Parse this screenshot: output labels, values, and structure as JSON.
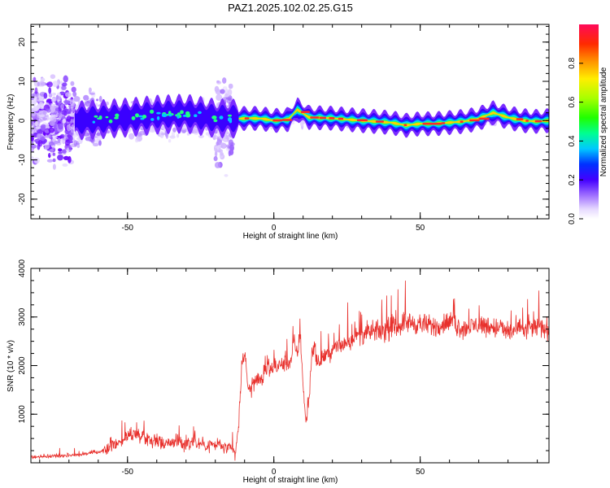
{
  "figure": {
    "title": "PAZ1.2025.102.02.25.G15"
  },
  "chart_data": [
    {
      "type": "heatmap",
      "xlabel": "Height of straight line (km)",
      "ylabel": "Frequency (Hz)",
      "xlim": [
        -83,
        94
      ],
      "ylim": [
        -25,
        24.5
      ],
      "xticks": [
        -50,
        0,
        50
      ],
      "yticks": [
        -20,
        -10,
        0,
        10,
        20
      ],
      "grid": false,
      "ridge": {
        "x": [
          -68,
          -60,
          -50,
          -40,
          -30,
          -20,
          -12,
          -8,
          -4,
          0,
          5,
          8,
          12,
          20,
          30,
          40,
          45,
          50,
          55,
          60,
          65,
          70,
          75,
          80,
          85,
          90,
          94
        ],
        "y": [
          0,
          0.3,
          0.8,
          1.5,
          1.8,
          0.6,
          0.5,
          0.6,
          0.5,
          0,
          0.3,
          2.8,
          0.8,
          0.6,
          0,
          -0.5,
          -1.2,
          -0.8,
          -0.8,
          -0.5,
          -0.2,
          0.5,
          2.0,
          0.8,
          0,
          -0.2,
          0
        ]
      },
      "colorbar": {
        "label": "Normalized spectral amplitude",
        "range": [
          0,
          1
        ],
        "ticks": [
          0.0,
          0.2,
          0.4,
          0.6,
          0.8
        ]
      }
    },
    {
      "type": "line",
      "xlabel": "Height of straight line (km)",
      "ylabel": "SNR (10 * v/v)",
      "xlim": [
        -83,
        94
      ],
      "ylim": [
        0,
        4000
      ],
      "xticks": [
        -50,
        0,
        50
      ],
      "yticks": [
        1000,
        2000,
        3000,
        4000
      ],
      "grid": false,
      "series": [
        {
          "color": "#e8302c",
          "x": [
            -83,
            -78,
            -73,
            -68,
            -63,
            -58,
            -55,
            -52,
            -49,
            -46,
            -43,
            -40,
            -37,
            -34,
            -31,
            -28,
            -25,
            -22,
            -19,
            -16,
            -13,
            -12,
            -11,
            -10,
            -9,
            -8,
            -7,
            -6,
            -4,
            -2,
            0,
            2,
            4,
            6,
            7,
            8,
            9,
            10,
            11,
            12,
            13,
            14,
            15,
            17,
            20,
            25,
            30,
            35,
            40,
            45,
            50,
            55,
            60,
            65,
            70,
            75,
            80,
            85,
            90,
            94
          ],
          "y": [
            120,
            130,
            150,
            160,
            200,
            250,
            380,
            450,
            600,
            580,
            500,
            450,
            400,
            430,
            380,
            420,
            400,
            350,
            380,
            300,
            220,
            800,
            2000,
            2300,
            1600,
            1500,
            1650,
            1700,
            1750,
            1900,
            1950,
            2000,
            2050,
            2100,
            2500,
            2200,
            2700,
            1600,
            800,
            1300,
            2300,
            2400,
            2000,
            2200,
            2300,
            2500,
            2650,
            2700,
            2750,
            2900,
            2850,
            2800,
            2900,
            2750,
            2850,
            2800,
            2700,
            2750,
            2800,
            2750
          ]
        }
      ]
    }
  ]
}
